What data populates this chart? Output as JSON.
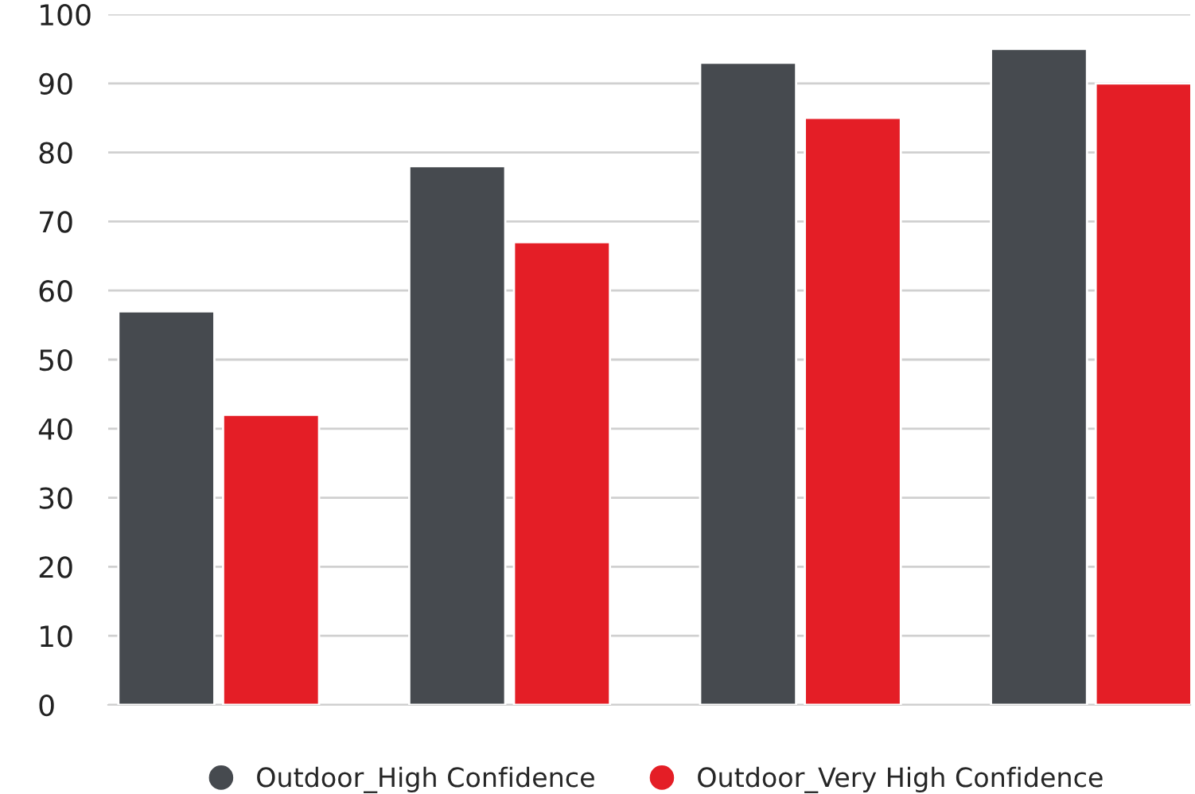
{
  "chart_data": {
    "type": "bar",
    "categories": [
      null,
      null,
      null,
      null
    ],
    "series": [
      {
        "name": "Outdoor_High Confidence",
        "color": "#464a4f",
        "values": [
          57,
          78,
          93,
          95
        ]
      },
      {
        "name": "Outdoor_Very High Confidence",
        "color": "#e41e26",
        "values": [
          42,
          67,
          85,
          90
        ]
      }
    ],
    "ylim": [
      0,
      100
    ],
    "yticks": [
      0,
      10,
      20,
      30,
      40,
      50,
      60,
      70,
      80,
      90,
      100
    ],
    "grid": "y",
    "legend": "bottom"
  }
}
